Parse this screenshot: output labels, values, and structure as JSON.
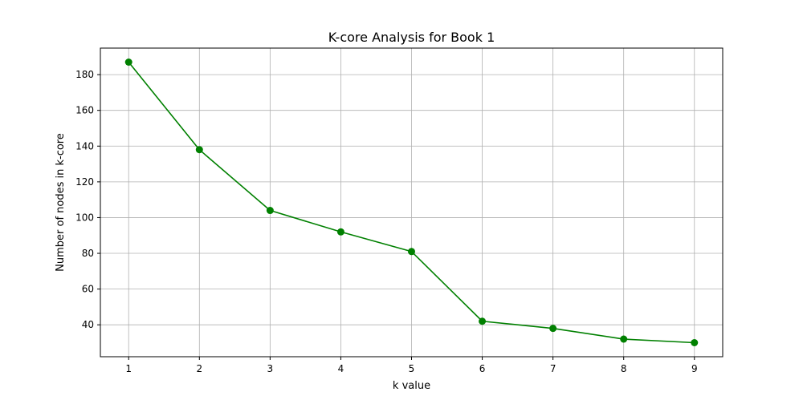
{
  "chart_data": {
    "type": "line",
    "title": "K-core Analysis for Book 1",
    "xlabel": "k value",
    "ylabel": "Number of nodes in k-core",
    "x": [
      1,
      2,
      3,
      4,
      5,
      6,
      7,
      8,
      9
    ],
    "series": [
      {
        "values": [
          187,
          138,
          104,
          92,
          81,
          42,
          38,
          32,
          30
        ],
        "color": "#008000",
        "marker": "circle"
      }
    ],
    "xticks": [
      1,
      2,
      3,
      4,
      5,
      6,
      7,
      8,
      9
    ],
    "yticks": [
      40,
      60,
      80,
      100,
      120,
      140,
      160,
      180
    ],
    "xlim": [
      0.6,
      9.4
    ],
    "ylim": [
      22.15,
      194.85
    ],
    "grid": true
  }
}
